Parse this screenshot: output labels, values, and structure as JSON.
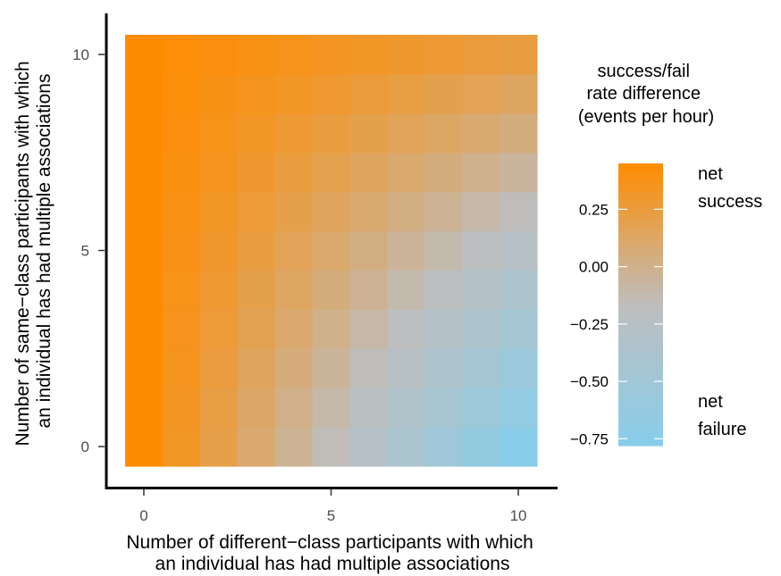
{
  "chart_data": {
    "type": "heatmap",
    "x_label_lines": [
      "Number of different−class participants with which",
      "an individual has had multiple associations"
    ],
    "y_label_lines": [
      "Number of same−class participants with which",
      "an individual has had multiple associations"
    ],
    "x": [
      0,
      1,
      2,
      3,
      4,
      5,
      6,
      7,
      8,
      9,
      10
    ],
    "y": [
      0,
      1,
      2,
      3,
      4,
      5,
      6,
      7,
      8,
      9,
      10
    ],
    "x_ticks": [
      "0",
      "5",
      "10"
    ],
    "y_ticks": [
      "0",
      "5",
      "10"
    ],
    "xlim": [
      -0.5,
      10.5
    ],
    "ylim": [
      -0.5,
      10.5
    ],
    "value_model": "z = 0.45 - 0.12 * x * (1 - 0.0824 * y)",
    "legend": {
      "title_lines": [
        "success/fail",
        "rate difference",
        "(events per hour)"
      ],
      "ticks": [
        "0.25",
        "0.00",
        "−0.25",
        "−0.50",
        "−0.75"
      ],
      "tick_values": [
        0.25,
        0,
        -0.25,
        -0.5,
        -0.75
      ],
      "range": [
        -0.78,
        0.45
      ],
      "high_label_lines": [
        "net",
        "success"
      ],
      "low_label_lines": [
        "net",
        "failure"
      ],
      "position": "right"
    },
    "colors": {
      "high": "#ff8c00",
      "mid": "#bebebe",
      "low": "#87ceeb"
    },
    "grid": false
  }
}
